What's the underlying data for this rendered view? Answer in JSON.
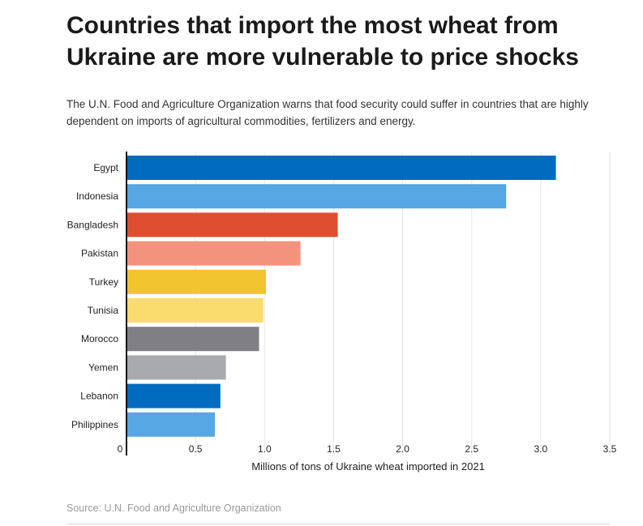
{
  "title": "Countries that import the most wheat from Ukraine are more vulnerable to price shocks",
  "subtitle": "The U.N. Food and Agriculture Organization warns that food security could suffer in countries that are highly dependent on imports of agricultural commodities, fertilizers and energy.",
  "source": "Source: U.N. Food and Agriculture Organization",
  "chart_data": {
    "type": "bar",
    "orientation": "horizontal",
    "categories": [
      "Egypt",
      "Indonesia",
      "Bangladesh",
      "Pakistan",
      "Turkey",
      "Tunisia",
      "Morocco",
      "Yemen",
      "Lebanon",
      "Philippines"
    ],
    "values": [
      3.11,
      2.75,
      1.53,
      1.26,
      1.01,
      0.99,
      0.96,
      0.72,
      0.68,
      0.64
    ],
    "colors": [
      "#006bbf",
      "#56a7e3",
      "#e04e32",
      "#f4937b",
      "#f2c42d",
      "#fadc6e",
      "#808084",
      "#a9aaad",
      "#006bbf",
      "#56a7e3"
    ],
    "xlabel": "Millions of tons of Ukraine wheat imported in 2021",
    "ylabel": "",
    "xlim": [
      0,
      3.5
    ],
    "xticks": [
      0,
      0.5,
      1.0,
      1.5,
      2.0,
      2.5,
      3.0,
      3.5
    ],
    "xtick_labels": [
      "0",
      "0.5",
      "1.0",
      "1.5",
      "2.0",
      "2.5",
      "3.0",
      "3.5"
    ],
    "grid": "vertical"
  }
}
